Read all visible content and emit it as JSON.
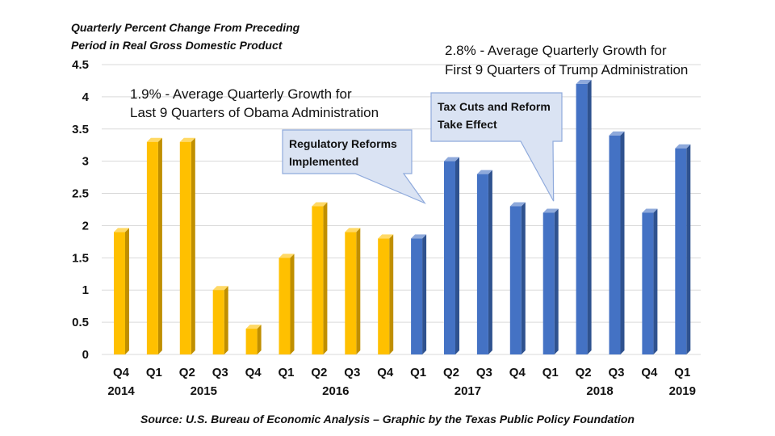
{
  "chart_data": {
    "type": "bar",
    "title": "Quarterly Percent Change From Preceding Period in Real Gross Domestic Product",
    "title_lines": [
      "Quarterly Percent Change From Preceding",
      "Period in Real Gross Domestic Product"
    ],
    "categories": [
      "Q4 2014",
      "Q1 2015",
      "Q2 2015",
      "Q3 2015",
      "Q4 2015",
      "Q1 2016",
      "Q2 2016",
      "Q3 2016",
      "Q4 2016",
      "Q1 2017",
      "Q2 2017",
      "Q3 2017",
      "Q4 2017",
      "Q1 2018",
      "Q2 2018",
      "Q3 2018",
      "Q4 2018",
      "Q1 2019"
    ],
    "quarters": [
      "Q4",
      "Q1",
      "Q2",
      "Q3",
      "Q4",
      "Q1",
      "Q2",
      "Q3",
      "Q4",
      "Q1",
      "Q2",
      "Q3",
      "Q4",
      "Q1",
      "Q2",
      "Q3",
      "Q4",
      "Q1"
    ],
    "years": [
      {
        "label": "2014",
        "index": 0
      },
      {
        "label": "2015",
        "index": 2.5
      },
      {
        "label": "2016",
        "index": 6.5
      },
      {
        "label": "2017",
        "index": 10.5
      },
      {
        "label": "2018",
        "index": 14.5
      },
      {
        "label": "2019",
        "index": 17
      }
    ],
    "values": [
      1.9,
      3.3,
      3.3,
      1.0,
      0.4,
      1.5,
      2.3,
      1.9,
      1.8,
      1.8,
      3.0,
      2.8,
      2.3,
      2.2,
      4.2,
      3.4,
      2.2,
      3.2
    ],
    "series_groups": [
      {
        "name": "Obama Administration",
        "start": 0,
        "end": 8,
        "color": "#FFC000",
        "side": "#C08F00",
        "top": "#FFD966"
      },
      {
        "name": "Trump Administration",
        "start": 9,
        "end": 17,
        "color": "#4472C4",
        "side": "#2F528F",
        "top": "#8EA9DB"
      }
    ],
    "ylim": [
      0,
      4.5
    ],
    "yticks": [
      "0",
      "0.5",
      "1",
      "1.5",
      "2",
      "2.5",
      "3",
      "3.5",
      "4",
      "4.5"
    ],
    "grid": true,
    "xlabel": "",
    "ylabel": "",
    "annotations": [
      {
        "lines": [
          "1.9% - Average Quarterly Growth for",
          "Last 9 Quarters of Obama Administration"
        ]
      },
      {
        "lines": [
          "2.8% - Average Quarterly Growth for",
          "First 9 Quarters of Trump Administration"
        ]
      }
    ],
    "callouts": [
      {
        "lines": [
          "Regulatory Reforms",
          "Implemented"
        ],
        "points_to_index": 9
      },
      {
        "lines": [
          "Tax Cuts and Reform",
          "Take Effect"
        ],
        "points_to_index": 13
      }
    ],
    "source": "Source: U.S. Bureau of Economic Analysis – Graphic by the Texas Public Policy Foundation"
  }
}
